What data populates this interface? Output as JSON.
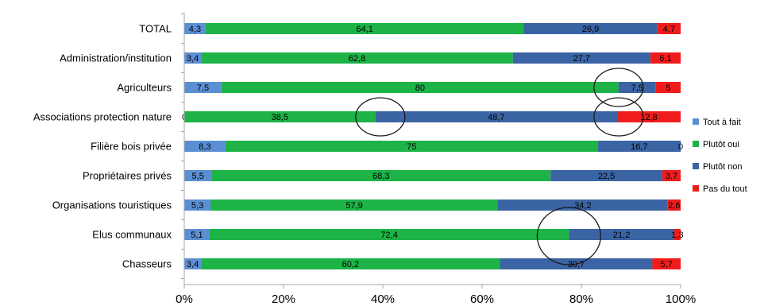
{
  "chart_data": {
    "type": "bar",
    "orientation": "horizontal",
    "stacked": true,
    "percent_stacked": true,
    "categories": [
      "TOTAL",
      "Administration/institution",
      "Agriculteurs",
      "Associations protection nature",
      "Filière bois privée",
      "Propriétaires privés",
      "Organisations touristiques",
      "Elus communaux",
      "Chasseurs"
    ],
    "series": [
      {
        "name": "Tout à fait",
        "color": "#5b8fd4",
        "values": [
          4.3,
          3.4,
          7.5,
          0,
          8.3,
          5.5,
          5.3,
          5.1,
          3.4
        ],
        "labels": [
          "4,3",
          "3,4",
          "7,5",
          "0",
          "8,3",
          "5,5",
          "5,3",
          "5,1",
          "3,4"
        ]
      },
      {
        "name": "Plutôt oui",
        "color": "#1db347",
        "values": [
          64.1,
          62.8,
          80,
          38.5,
          75,
          68.3,
          57.9,
          72.4,
          60.2
        ],
        "labels": [
          "64,1",
          "62,8",
          "80",
          "38,5",
          "75",
          "68,3",
          "57,9",
          "72,4",
          "60,2"
        ]
      },
      {
        "name": "Plutôt non",
        "color": "#3b64a4",
        "values": [
          26.9,
          27.7,
          7.5,
          48.7,
          16.7,
          22.5,
          34.2,
          21.2,
          30.7
        ],
        "labels": [
          "26,9",
          "27,7",
          "7,5",
          "48,7",
          "16,7",
          "22,5",
          "34,2",
          "21,2",
          "30,7"
        ]
      },
      {
        "name": "Pas du tout",
        "color": "#f01c1c",
        "values": [
          4.7,
          6.1,
          5,
          12.8,
          0,
          3.7,
          2.6,
          1.3,
          5.7
        ],
        "labels": [
          "4,7",
          "6,1",
          "5",
          "12,8",
          "0",
          "3,7",
          "2,6",
          "1,3",
          "5,7"
        ]
      }
    ],
    "x_ticks": [
      "0%",
      "20%",
      "40%",
      "60%",
      "80%",
      "100%"
    ],
    "xlim": [
      0,
      100
    ],
    "grid": false,
    "legend_position": "right",
    "annotations": {
      "circles": [
        {
          "category": "Agriculteurs",
          "value": 87.5
        },
        {
          "category": "Associations protection nature",
          "value": 39.5
        },
        {
          "category": "Associations protection nature",
          "value": 87.5
        },
        {
          "category": "Elus communaux",
          "value": 77.5
        }
      ]
    }
  }
}
